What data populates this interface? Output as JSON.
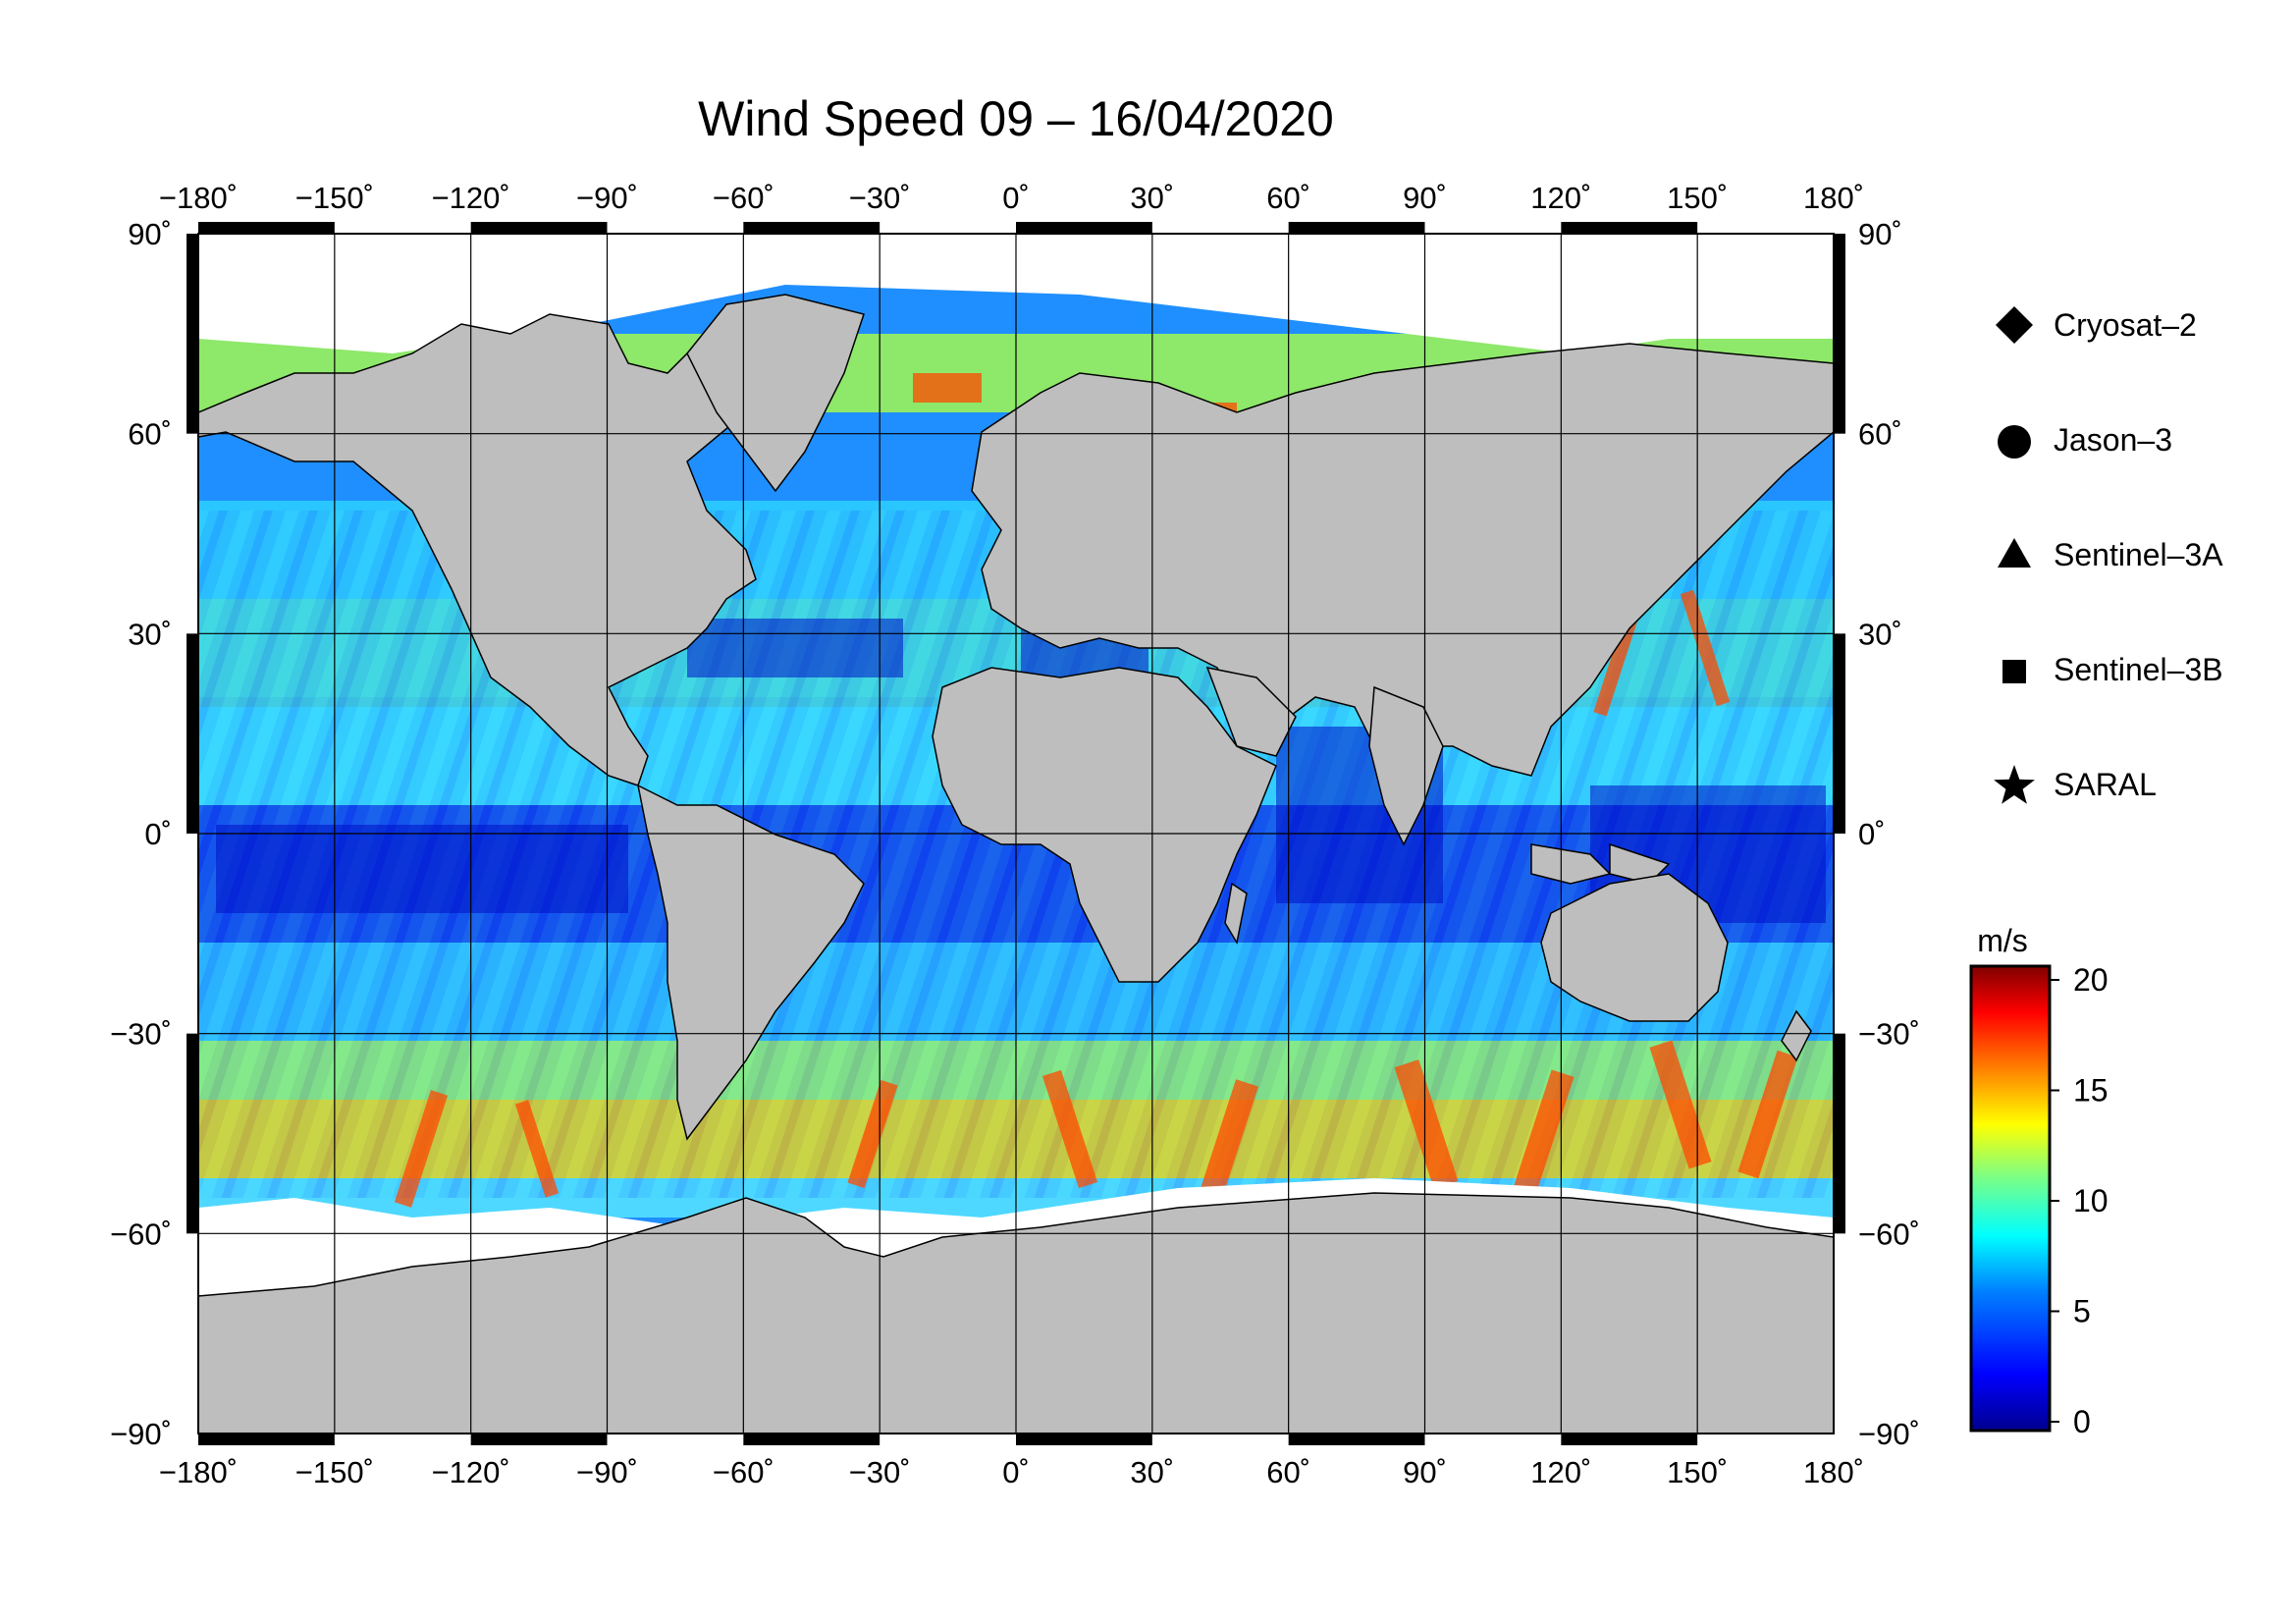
{
  "title": "Wind Speed 09 – 16/04/2020",
  "map": {
    "projection": "equirectangular",
    "lon_range": [
      -180,
      180
    ],
    "lat_range": [
      -90,
      90
    ],
    "land_color": "#bebebe",
    "ice_color": "#ffffff",
    "frame_color": "#000000",
    "lon_ticks": [
      "−180˚",
      "−150˚",
      "−120˚",
      "−90˚",
      "−60˚",
      "−30˚",
      "0˚",
      "30˚",
      "60˚",
      "90˚",
      "120˚",
      "150˚",
      "180˚"
    ],
    "lat_ticks": [
      "90˚",
      "60˚",
      "30˚",
      "0˚",
      "−30˚",
      "−60˚",
      "−90˚"
    ]
  },
  "legend": {
    "items": [
      {
        "label": "Cryosat–2",
        "marker": "diamond"
      },
      {
        "label": "Jason–3",
        "marker": "circle"
      },
      {
        "label": "Sentinel–3A",
        "marker": "triangle"
      },
      {
        "label": "Sentinel–3B",
        "marker": "square"
      },
      {
        "label": "SARAL",
        "marker": "star"
      }
    ]
  },
  "colorbar": {
    "unit": "m/s",
    "range": [
      0,
      20
    ],
    "tick_labels": [
      "20",
      "15",
      "10",
      "5",
      "0"
    ],
    "colors": [
      "#00008f",
      "#0000ff",
      "#0080ff",
      "#00ffff",
      "#80ff80",
      "#ffff00",
      "#ff8000",
      "#ff0000",
      "#800000"
    ]
  }
}
